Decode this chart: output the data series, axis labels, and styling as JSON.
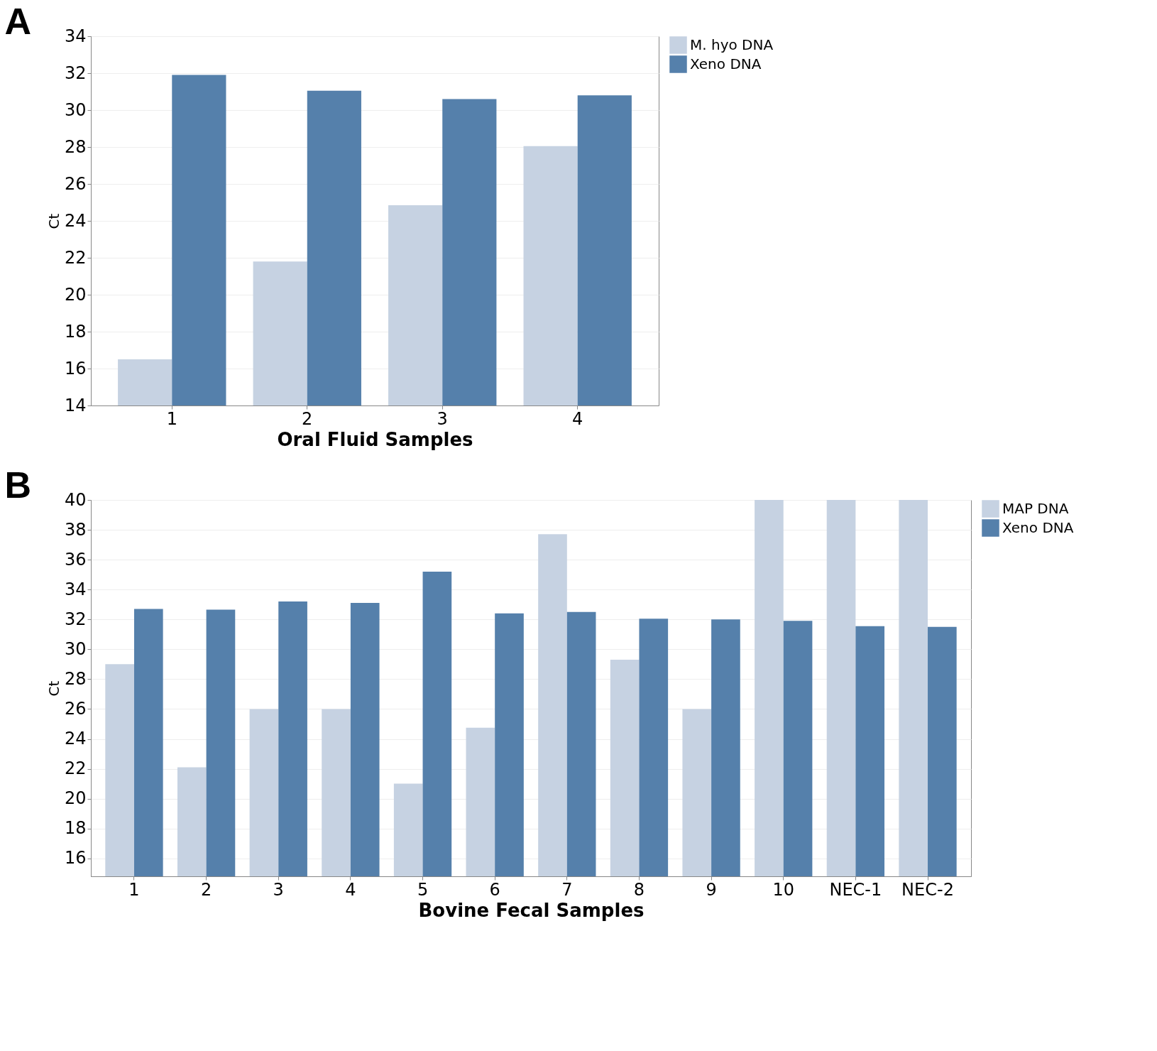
{
  "chart_data": [
    {
      "type": "bar",
      "title": "A",
      "xlabel": "Oral Fluid Samples",
      "ylabel": "Ct",
      "categories": [
        "1",
        "2",
        "3",
        "4"
      ],
      "series": [
        {
          "name": "M. hyo DNA",
          "color": "#c6d2e2",
          "values": [
            16.5,
            21.8,
            24.85,
            28.05
          ]
        },
        {
          "name": "Xeno DNA",
          "color": "#5580ab",
          "values": [
            31.9,
            31.05,
            30.6,
            30.8
          ]
        }
      ],
      "ylim": [
        14,
        34
      ],
      "yticks": [
        14,
        16,
        18,
        20,
        22,
        24,
        26,
        28,
        30,
        32,
        34
      ],
      "grid": "y",
      "legend": "top right"
    },
    {
      "type": "bar",
      "title": "B",
      "xlabel": "Bovine Fecal Samples",
      "ylabel": "Ct",
      "categories": [
        "1",
        "2",
        "3",
        "4",
        "5",
        "6",
        "7",
        "8",
        "9",
        "10",
        "NEC-1",
        "NEC-2"
      ],
      "series": [
        {
          "name": "MAP DNA",
          "color": "#c6d2e2",
          "values": [
            29.0,
            22.1,
            26.0,
            26.0,
            21.0,
            24.75,
            37.7,
            29.3,
            26.0,
            40,
            40,
            40
          ]
        },
        {
          "name": "Xeno DNA",
          "color": "#5580ab",
          "values": [
            32.7,
            32.65,
            33.2,
            33.1,
            35.2,
            32.4,
            32.5,
            32.05,
            32.0,
            31.9,
            31.55,
            31.5
          ]
        }
      ],
      "ylim": [
        14.8,
        40
      ],
      "yticks": [
        16,
        18,
        20,
        22,
        24,
        26,
        28,
        30,
        32,
        34,
        36,
        38,
        40
      ],
      "grid": "y",
      "legend": "top right"
    }
  ]
}
